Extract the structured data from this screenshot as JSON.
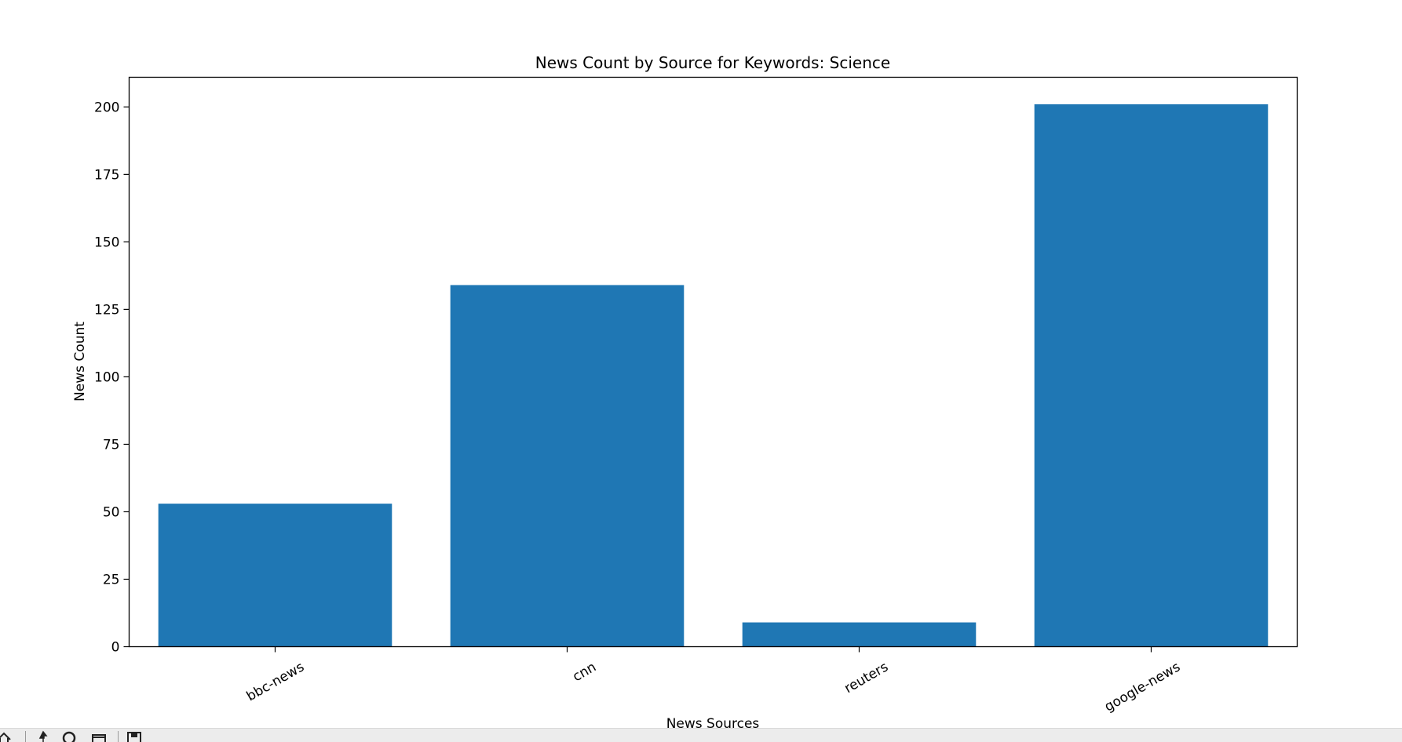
{
  "chart_data": {
    "type": "bar",
    "title": "News Count by Source for Keywords: Science",
    "xlabel": "News Sources",
    "ylabel": "News Count",
    "categories": [
      "bbc-news",
      "cnn",
      "reuters",
      "google-news"
    ],
    "values": [
      53,
      134,
      9,
      201
    ],
    "ylim": [
      0,
      211
    ],
    "yticks": [
      0,
      25,
      50,
      75,
      100,
      125,
      150,
      175,
      200
    ],
    "bar_color": "#1f77b4",
    "grid": false,
    "legend": "none"
  },
  "toolbar": {
    "icons": [
      "home-icon",
      "pan-icon",
      "zoom-icon",
      "configure-icon",
      "save-icon"
    ]
  }
}
